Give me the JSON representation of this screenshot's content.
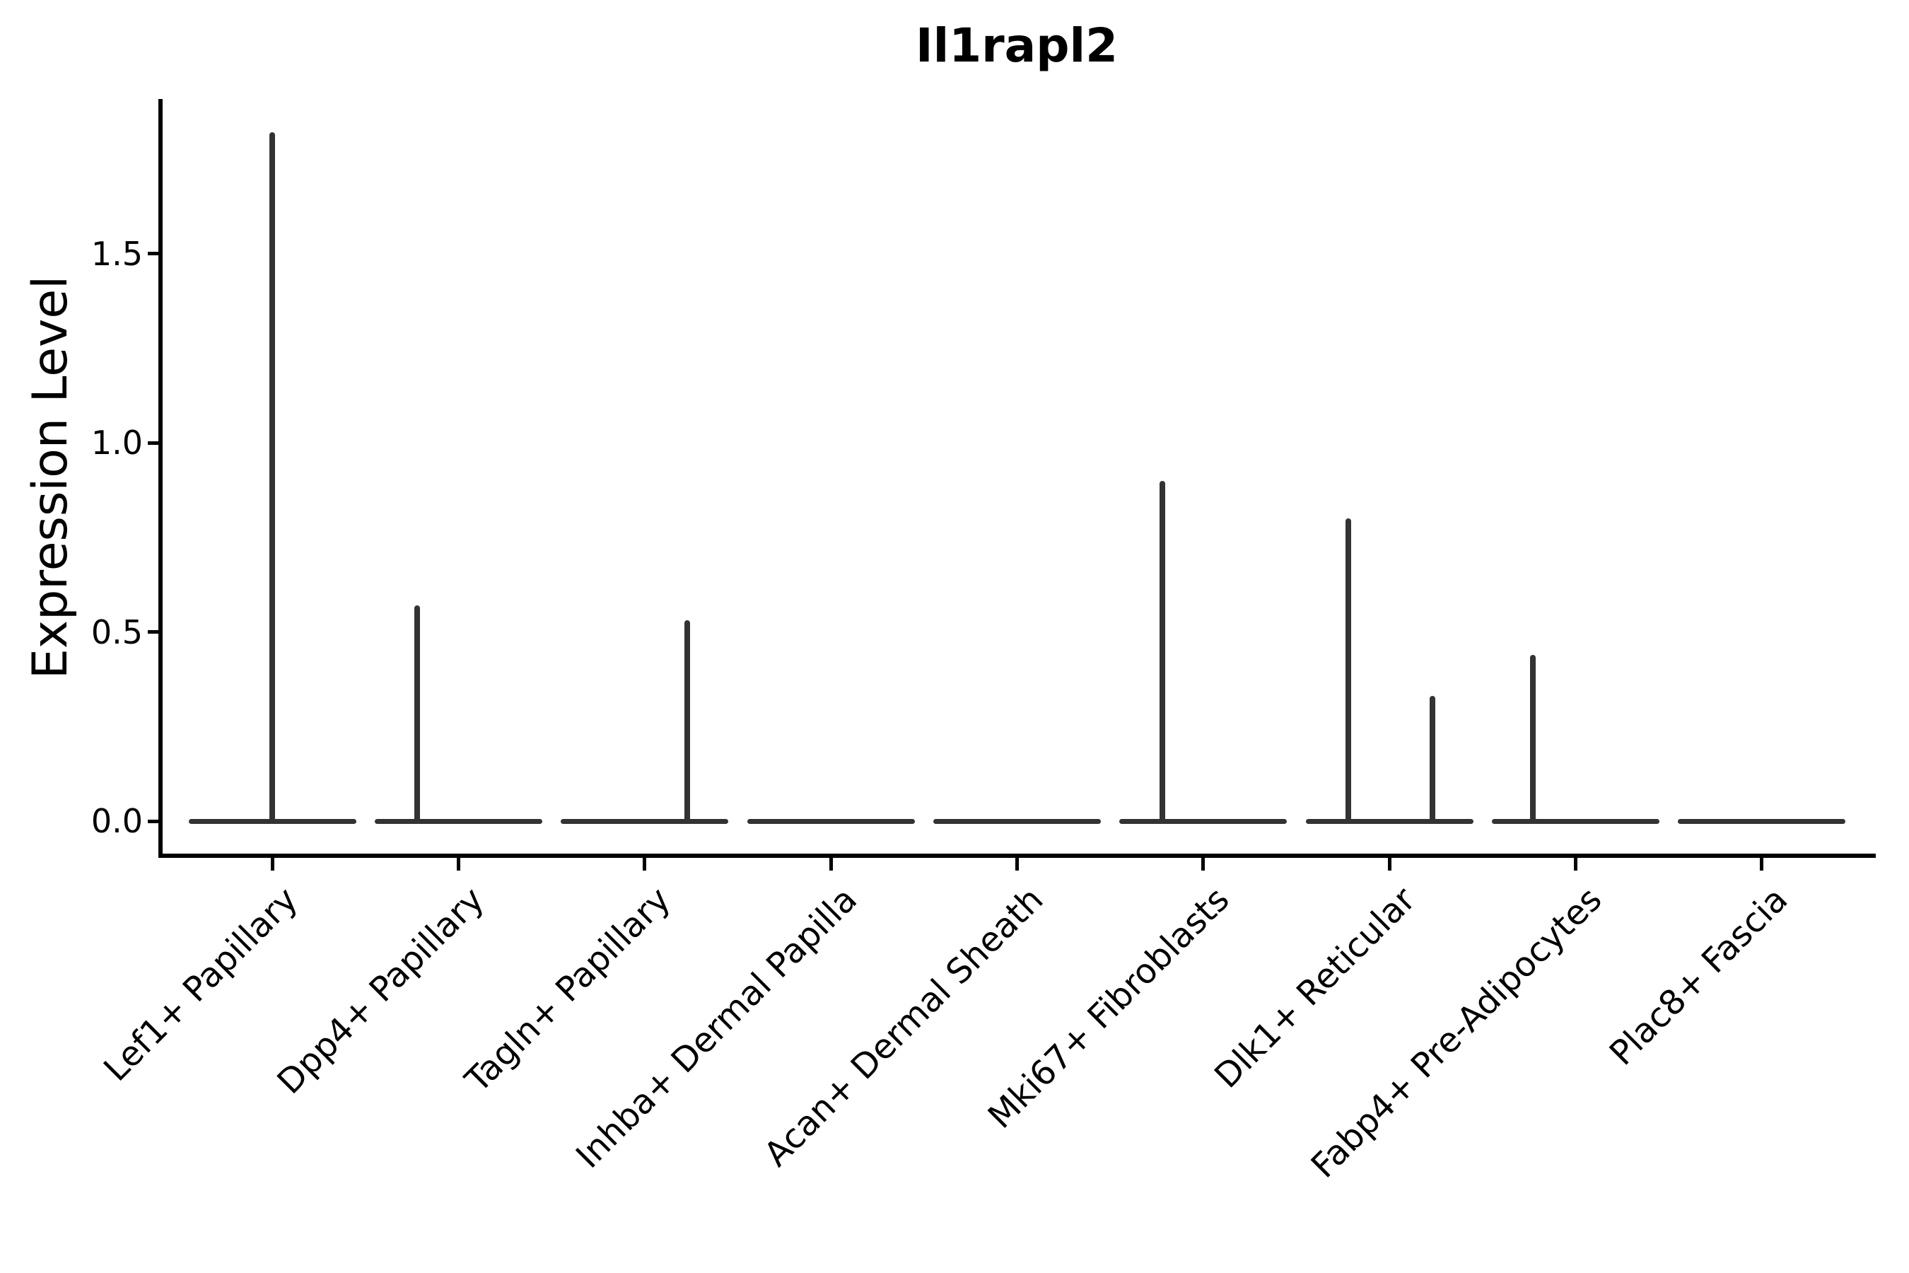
{
  "figure": {
    "title": "Il1rapl2",
    "ylabel": "Expression Level"
  },
  "chart_data": {
    "type": "violin",
    "title": "Il1rapl2",
    "xlabel": "",
    "ylabel": "Expression Level",
    "categories": [
      "Lef1+ Papillary",
      "Dpp4+ Papillary",
      "Tagln+ Papillary",
      "Inhba+ Dermal Papilla",
      "Acan+ Dermal Sheath",
      "Mki67+ Fibroblasts",
      "Dlk1+ Reticular",
      "Fabp4+ Pre-Adipocytes",
      "Plac8+ Fascia"
    ],
    "ytick_labels": [
      "0.0",
      "0.5",
      "1.0",
      "1.5"
    ],
    "ytick_values": [
      0.0,
      0.5,
      1.0,
      1.5
    ],
    "ylim": [
      -0.09,
      1.91
    ],
    "grid": false,
    "legend": "none",
    "violins": [
      {
        "category": "Lef1+ Papillary",
        "bulk_at_zero": true,
        "max_expression": 1.82,
        "spikes": [
          {
            "value": 1.82,
            "offset": 0.0
          }
        ]
      },
      {
        "category": "Dpp4+ Papillary",
        "bulk_at_zero": true,
        "max_expression": 0.57,
        "spikes": [
          {
            "value": 0.57,
            "offset": -0.22
          }
        ]
      },
      {
        "category": "Tagln+ Papillary",
        "bulk_at_zero": true,
        "max_expression": 0.53,
        "spikes": [
          {
            "value": 0.53,
            "offset": 0.23
          }
        ]
      },
      {
        "category": "Inhba+ Dermal Papilla",
        "bulk_at_zero": true,
        "max_expression": 0.0,
        "spikes": []
      },
      {
        "category": "Acan+ Dermal Sheath",
        "bulk_at_zero": true,
        "max_expression": 0.0,
        "spikes": []
      },
      {
        "category": "Mki67+ Fibroblasts",
        "bulk_at_zero": true,
        "max_expression": 0.9,
        "spikes": [
          {
            "value": 0.9,
            "offset": -0.22
          }
        ]
      },
      {
        "category": "Dlk1+ Reticular",
        "bulk_at_zero": true,
        "max_expression": 0.8,
        "spikes": [
          {
            "value": 0.8,
            "offset": -0.22
          },
          {
            "value": 0.33,
            "offset": 0.23
          }
        ]
      },
      {
        "category": "Fabp4+ Pre-Adipocytes",
        "bulk_at_zero": true,
        "max_expression": 0.44,
        "spikes": [
          {
            "value": 0.44,
            "offset": -0.23
          }
        ]
      },
      {
        "category": "Plac8+ Fascia",
        "bulk_at_zero": true,
        "max_expression": 0.0,
        "spikes": []
      }
    ],
    "colors": {
      "violin_line": "#333333",
      "axis": "#000000",
      "text": "#000000",
      "background": "#ffffff"
    }
  }
}
